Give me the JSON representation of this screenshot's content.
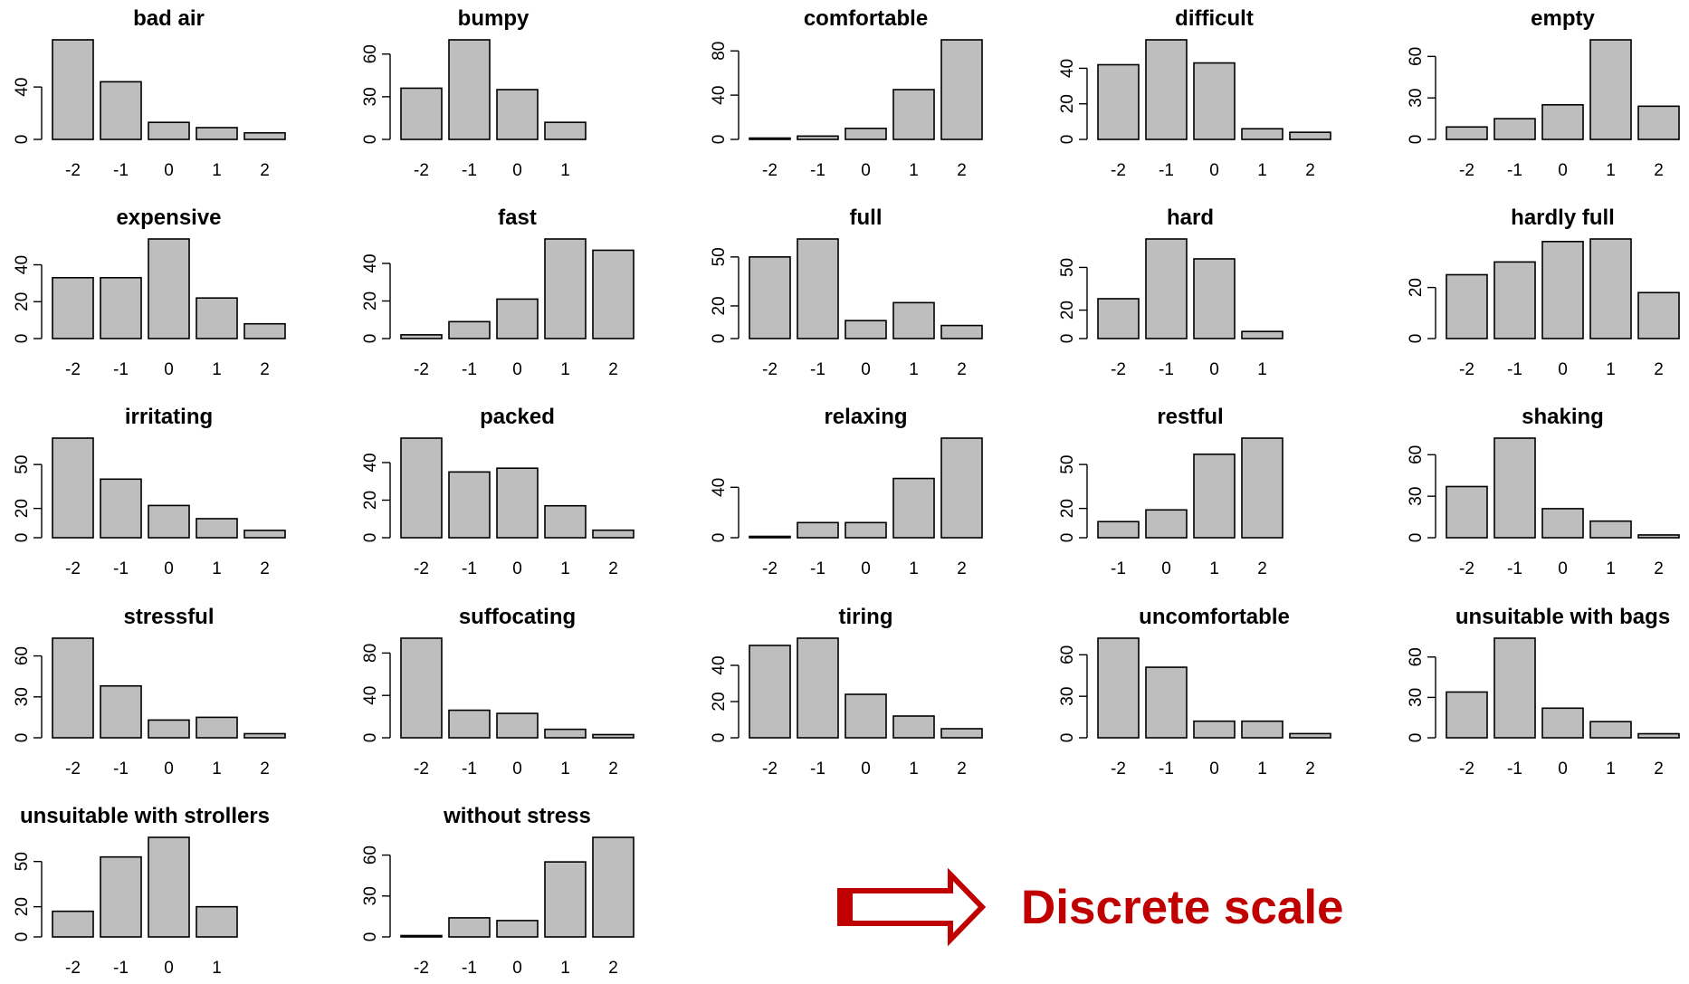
{
  "callout": {
    "text": "Discrete scale",
    "arrow_icon": "right-arrow-icon",
    "color": "#c00000"
  },
  "chart_data": [
    {
      "type": "bar",
      "title": "bad air",
      "categories": [
        "-2",
        "-1",
        "0",
        "1",
        "2"
      ],
      "values": [
        76,
        44,
        13,
        9,
        5
      ],
      "yticks": [
        0,
        40
      ],
      "ylim": [
        0,
        76
      ]
    },
    {
      "type": "bar",
      "title": "bumpy",
      "categories": [
        "-2",
        "-1",
        "0",
        "1"
      ],
      "values": [
        36,
        70,
        35,
        12
      ],
      "yticks": [
        0,
        30,
        60
      ],
      "ylim": [
        0,
        70
      ]
    },
    {
      "type": "bar",
      "title": "comfortable",
      "categories": [
        "-2",
        "-1",
        "0",
        "1",
        "2"
      ],
      "values": [
        1,
        3,
        10,
        45,
        90
      ],
      "yticks": [
        0,
        40,
        80
      ],
      "ylim": [
        0,
        90
      ]
    },
    {
      "type": "bar",
      "title": "difficult",
      "categories": [
        "-2",
        "-1",
        "0",
        "1",
        "2"
      ],
      "values": [
        42,
        56,
        43,
        6,
        4
      ],
      "yticks": [
        0,
        20,
        40
      ],
      "ylim": [
        0,
        56
      ]
    },
    {
      "type": "bar",
      "title": "empty",
      "categories": [
        "-2",
        "-1",
        "0",
        "1",
        "2"
      ],
      "values": [
        9,
        15,
        25,
        72,
        24
      ],
      "yticks": [
        0,
        30,
        60
      ],
      "ylim": [
        0,
        72
      ]
    },
    {
      "type": "bar",
      "title": "expensive",
      "categories": [
        "-2",
        "-1",
        "0",
        "1",
        "2"
      ],
      "values": [
        33,
        33,
        54,
        22,
        8
      ],
      "yticks": [
        0,
        20,
        40
      ],
      "ylim": [
        0,
        54
      ]
    },
    {
      "type": "bar",
      "title": "fast",
      "categories": [
        "-2",
        "-1",
        "0",
        "1",
        "2"
      ],
      "values": [
        2,
        9,
        21,
        53,
        47
      ],
      "yticks": [
        0,
        20,
        40
      ],
      "ylim": [
        0,
        53
      ]
    },
    {
      "type": "bar",
      "title": "full",
      "categories": [
        "-2",
        "-1",
        "0",
        "1",
        "2"
      ],
      "values": [
        50,
        61,
        11,
        22,
        8
      ],
      "yticks": [
        0,
        20,
        50
      ],
      "ylim": [
        0,
        61
      ]
    },
    {
      "type": "bar",
      "title": "hard",
      "categories": [
        "-2",
        "-1",
        "0",
        "1"
      ],
      "values": [
        28,
        70,
        56,
        5
      ],
      "yticks": [
        0,
        20,
        50
      ],
      "ylim": [
        0,
        70
      ]
    },
    {
      "type": "bar",
      "title": "hardly full",
      "categories": [
        "-2",
        "-1",
        "0",
        "1",
        "2"
      ],
      "values": [
        25,
        30,
        38,
        39,
        18
      ],
      "yticks": [
        0,
        20
      ],
      "ylim": [
        0,
        39
      ]
    },
    {
      "type": "bar",
      "title": "irritating",
      "categories": [
        "-2",
        "-1",
        "0",
        "1",
        "2"
      ],
      "values": [
        68,
        40,
        22,
        13,
        5
      ],
      "yticks": [
        0,
        20,
        50
      ],
      "ylim": [
        0,
        68
      ]
    },
    {
      "type": "bar",
      "title": "packed",
      "categories": [
        "-2",
        "-1",
        "0",
        "1",
        "2"
      ],
      "values": [
        53,
        35,
        37,
        17,
        4
      ],
      "yticks": [
        0,
        20,
        40
      ],
      "ylim": [
        0,
        53
      ]
    },
    {
      "type": "bar",
      "title": "relaxing",
      "categories": [
        "-2",
        "-1",
        "0",
        "1",
        "2"
      ],
      "values": [
        1,
        12,
        12,
        47,
        79
      ],
      "yticks": [
        0,
        40
      ],
      "ylim": [
        0,
        79
      ]
    },
    {
      "type": "bar",
      "title": "restful",
      "categories": [
        "-1",
        "0",
        "1",
        "2"
      ],
      "values": [
        11,
        19,
        57,
        68
      ],
      "yticks": [
        0,
        20,
        50
      ],
      "ylim": [
        0,
        68
      ]
    },
    {
      "type": "bar",
      "title": "shaking",
      "categories": [
        "-2",
        "-1",
        "0",
        "1",
        "2"
      ],
      "values": [
        37,
        72,
        21,
        12,
        2
      ],
      "yticks": [
        0,
        30,
        60
      ],
      "ylim": [
        0,
        72
      ]
    },
    {
      "type": "bar",
      "title": "stressful",
      "categories": [
        "-2",
        "-1",
        "0",
        "1",
        "2"
      ],
      "values": [
        73,
        38,
        13,
        15,
        3
      ],
      "yticks": [
        0,
        30,
        60
      ],
      "ylim": [
        0,
        73
      ]
    },
    {
      "type": "bar",
      "title": "suffocating",
      "categories": [
        "-2",
        "-1",
        "0",
        "1",
        "2"
      ],
      "values": [
        94,
        26,
        23,
        8,
        3
      ],
      "yticks": [
        0,
        40,
        80
      ],
      "ylim": [
        0,
        94
      ]
    },
    {
      "type": "bar",
      "title": "tiring",
      "categories": [
        "-2",
        "-1",
        "0",
        "1",
        "2"
      ],
      "values": [
        51,
        55,
        24,
        12,
        5
      ],
      "yticks": [
        0,
        20,
        40
      ],
      "ylim": [
        0,
        55
      ]
    },
    {
      "type": "bar",
      "title": "uncomfortable",
      "categories": [
        "-2",
        "-1",
        "0",
        "1",
        "2"
      ],
      "values": [
        72,
        51,
        12,
        12,
        3
      ],
      "yticks": [
        0,
        30,
        60
      ],
      "ylim": [
        0,
        72
      ]
    },
    {
      "type": "bar",
      "title": "unsuitable with bags",
      "categories": [
        "-2",
        "-1",
        "0",
        "1",
        "2"
      ],
      "values": [
        34,
        74,
        22,
        12,
        3
      ],
      "yticks": [
        0,
        30,
        60
      ],
      "ylim": [
        0,
        74
      ]
    },
    {
      "type": "bar",
      "title": "unsuitable with strollers",
      "categories": [
        "-2",
        "-1",
        "0",
        "1"
      ],
      "values": [
        17,
        53,
        66,
        20
      ],
      "yticks": [
        0,
        20,
        50
      ],
      "ylim": [
        0,
        66
      ]
    },
    {
      "type": "bar",
      "title": "without stress",
      "categories": [
        "-2",
        "-1",
        "0",
        "1",
        "2"
      ],
      "values": [
        1,
        14,
        12,
        55,
        73
      ],
      "yticks": [
        0,
        30,
        60
      ],
      "ylim": [
        0,
        73
      ]
    }
  ]
}
